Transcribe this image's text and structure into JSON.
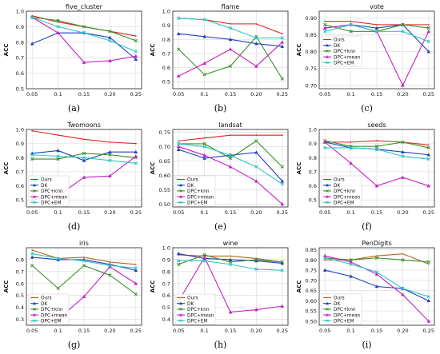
{
  "colors": {
    "Ours": "#b5651d",
    "DK": "#1f3fbf",
    "DPC+knn": "#3a8f2a",
    "DPC+mean": "#c41fc4",
    "DPC+EM": "#2ec4c4",
    "Ours_alt": "#e02020"
  },
  "chart_data": [
    {
      "type": "line",
      "title": "five_cluster",
      "ylabel": "ACC",
      "caption": "(a)",
      "x": [
        0.05,
        0.1,
        0.15,
        0.2,
        0.25
      ],
      "xticks": [
        "0.05",
        "0.1",
        "0.15",
        "0.20",
        "0.25"
      ],
      "ylim": [
        0.5,
        1.0
      ],
      "yticks": [
        "0.5",
        "0.6",
        "0.7",
        "0.8",
        "0.9",
        "1.0"
      ],
      "yticks_values": [
        0.5,
        0.6,
        0.7,
        0.8,
        0.9,
        1.0
      ],
      "legend_position": "none",
      "series": [
        {
          "name": "Ours",
          "color_key": "Ours_alt",
          "values": [
            0.97,
            0.93,
            0.9,
            0.87,
            0.84
          ]
        },
        {
          "name": "DK",
          "color_key": "DK",
          "values": [
            0.79,
            0.86,
            0.86,
            0.83,
            0.69
          ]
        },
        {
          "name": "DPC+knn",
          "color_key": "DPC+knn",
          "values": [
            0.96,
            0.94,
            0.9,
            0.87,
            0.81
          ]
        },
        {
          "name": "DPC+mean",
          "color_key": "DPC+mean",
          "values": [
            0.96,
            0.86,
            0.67,
            0.68,
            0.71
          ]
        },
        {
          "name": "DPC+EM",
          "color_key": "DPC+EM",
          "values": [
            0.96,
            0.9,
            0.86,
            0.81,
            0.74
          ]
        }
      ]
    },
    {
      "type": "line",
      "title": "flame",
      "ylabel": "ACC",
      "caption": "(b)",
      "x": [
        0.05,
        0.1,
        0.15,
        0.2,
        0.25
      ],
      "xticks": [
        "0.05",
        "0.1",
        "0.15",
        "0.20",
        "0.25"
      ],
      "ylim": [
        0.45,
        1.0
      ],
      "yticks": [
        "0.5",
        "0.6",
        "0.7",
        "0.8",
        "0.9",
        "1.0"
      ],
      "yticks_values": [
        0.5,
        0.6,
        0.7,
        0.8,
        0.9,
        1.0
      ],
      "legend_position": "none",
      "series": [
        {
          "name": "Ours",
          "color_key": "Ours_alt",
          "values": [
            0.95,
            0.94,
            0.91,
            0.91,
            0.84
          ]
        },
        {
          "name": "DK",
          "color_key": "DK",
          "values": [
            0.84,
            0.82,
            0.8,
            0.77,
            0.75
          ]
        },
        {
          "name": "DPC+knn",
          "color_key": "DPC+knn",
          "values": [
            0.73,
            0.55,
            0.61,
            0.82,
            0.52
          ]
        },
        {
          "name": "DPC+mean",
          "color_key": "DPC+mean",
          "values": [
            0.54,
            0.63,
            0.73,
            0.61,
            0.78
          ]
        },
        {
          "name": "DPC+EM",
          "color_key": "DPC+EM",
          "values": [
            0.95,
            0.94,
            0.88,
            0.81,
            0.81
          ]
        }
      ]
    },
    {
      "type": "line",
      "title": "vote",
      "ylabel": "ACC",
      "caption": "(c)",
      "x": [
        0.05,
        0.1,
        0.15,
        0.2,
        0.25
      ],
      "xticks": [
        "0.05",
        "0.1",
        "0.15",
        "0.20",
        "0.25"
      ],
      "ylim": [
        0.69,
        0.92
      ],
      "yticks": [
        "0.70",
        "0.75",
        "0.80",
        "0.85",
        "0.90"
      ],
      "yticks_values": [
        0.7,
        0.75,
        0.8,
        0.85,
        0.9
      ],
      "legend_position": "left",
      "series": [
        {
          "name": "Ours",
          "color_key": "Ours_alt",
          "values": [
            0.89,
            0.89,
            0.88,
            0.88,
            0.88
          ]
        },
        {
          "name": "DK",
          "color_key": "DK",
          "values": [
            0.87,
            0.88,
            0.87,
            0.88,
            0.8
          ]
        },
        {
          "name": "DPC+knn",
          "color_key": "DPC+knn",
          "values": [
            0.88,
            0.86,
            0.86,
            0.88,
            0.87
          ]
        },
        {
          "name": "DPC+mean",
          "color_key": "DPC+mean",
          "values": [
            0.87,
            0.88,
            0.86,
            0.7,
            0.86
          ]
        },
        {
          "name": "DPC+EM",
          "color_key": "DPC+EM",
          "values": [
            0.86,
            0.88,
            0.86,
            0.86,
            0.83
          ]
        }
      ]
    },
    {
      "type": "line",
      "title": "Twomoons",
      "ylabel": "ACC",
      "caption": "(d)",
      "x": [
        0.05,
        0.1,
        0.15,
        0.2,
        0.25
      ],
      "xticks": [
        "0.05",
        "0.1",
        "0.15",
        "0.20",
        "0.25"
      ],
      "ylim": [
        0.45,
        1.0
      ],
      "yticks": [
        "0.5",
        "0.6",
        "0.7",
        "0.8",
        "0.9",
        "1.0"
      ],
      "yticks_values": [
        0.5,
        0.6,
        0.7,
        0.8,
        0.9,
        1.0
      ],
      "legend_position": "bottom-left",
      "series": [
        {
          "name": "Ours",
          "color_key": "Ours_alt",
          "values": [
            0.99,
            0.96,
            0.93,
            0.91,
            0.9
          ]
        },
        {
          "name": "DK",
          "color_key": "DK",
          "values": [
            0.83,
            0.85,
            0.78,
            0.84,
            0.84
          ]
        },
        {
          "name": "DPC+knn",
          "color_key": "DPC+knn",
          "values": [
            0.79,
            0.79,
            0.83,
            0.82,
            0.8
          ]
        },
        {
          "name": "DPC+mean",
          "color_key": "DPC+mean",
          "values": [
            0.5,
            0.53,
            0.66,
            0.67,
            0.81
          ]
        },
        {
          "name": "DPC+EM",
          "color_key": "DPC+EM",
          "values": [
            0.82,
            0.81,
            0.8,
            0.78,
            0.76
          ]
        }
      ]
    },
    {
      "type": "line",
      "title": "landsat",
      "ylabel": "ACC",
      "caption": "(e)",
      "x": [
        0.05,
        0.1,
        0.15,
        0.2,
        0.25
      ],
      "xticks": [
        "0.05",
        "0.1",
        "0.15",
        "0.20",
        "0.25"
      ],
      "ylim": [
        0.49,
        0.76
      ],
      "yticks": [
        "0.50",
        "0.55",
        "0.60",
        "0.65",
        "0.70",
        "0.75"
      ],
      "yticks_values": [
        0.5,
        0.55,
        0.6,
        0.65,
        0.7,
        0.75
      ],
      "legend_position": "bottom-left",
      "series": [
        {
          "name": "Ours",
          "color_key": "Ours_alt",
          "values": [
            0.72,
            0.73,
            0.74,
            0.74,
            0.74
          ]
        },
        {
          "name": "DK",
          "color_key": "DK",
          "values": [
            0.69,
            0.66,
            0.67,
            0.68,
            0.58
          ]
        },
        {
          "name": "DPC+knn",
          "color_key": "DPC+knn",
          "values": [
            0.71,
            0.71,
            0.66,
            0.72,
            0.63
          ]
        },
        {
          "name": "DPC+mean",
          "color_key": "DPC+mean",
          "values": [
            0.7,
            0.67,
            0.63,
            0.58,
            0.5
          ]
        },
        {
          "name": "DPC+EM",
          "color_key": "DPC+EM",
          "values": [
            0.71,
            0.7,
            0.67,
            0.63,
            0.57
          ]
        }
      ]
    },
    {
      "type": "line",
      "title": "seeds",
      "ylabel": "ACC",
      "caption": "(f)",
      "x": [
        0.05,
        0.1,
        0.15,
        0.2,
        0.25
      ],
      "xticks": [
        "0.05",
        "0.1",
        "0.15",
        "0.20",
        "0.25"
      ],
      "ylim": [
        0.45,
        1.0
      ],
      "yticks": [
        "0.5",
        "0.6",
        "0.7",
        "0.8",
        "0.9",
        "1.0"
      ],
      "yticks_values": [
        0.5,
        0.6,
        0.7,
        0.8,
        0.9,
        1.0
      ],
      "legend_position": "bottom-left",
      "series": [
        {
          "name": "Ours",
          "color_key": "Ours_alt",
          "values": [
            0.91,
            0.91,
            0.92,
            0.91,
            0.89
          ]
        },
        {
          "name": "DK",
          "color_key": "DK",
          "values": [
            0.91,
            0.87,
            0.86,
            0.84,
            0.82
          ]
        },
        {
          "name": "DPC+knn",
          "color_key": "DPC+knn",
          "values": [
            0.92,
            0.88,
            0.88,
            0.91,
            0.87
          ]
        },
        {
          "name": "DPC+mean",
          "color_key": "DPC+mean",
          "values": [
            0.91,
            0.76,
            0.6,
            0.66,
            0.6
          ]
        },
        {
          "name": "DPC+EM",
          "color_key": "DPC+EM",
          "values": [
            0.87,
            0.87,
            0.86,
            0.81,
            0.79
          ]
        }
      ]
    },
    {
      "type": "line",
      "title": "iris",
      "ylabel": "ACC",
      "caption": "(g)",
      "x": [
        0.05,
        0.1,
        0.15,
        0.2,
        0.25
      ],
      "xticks": [
        "0.05",
        "0.1",
        "0.15",
        "0.20",
        "0.25"
      ],
      "ylim": [
        0.25,
        0.9
      ],
      "yticks": [
        "0.3",
        "0.4",
        "0.5",
        "0.6",
        "0.7",
        "0.8"
      ],
      "yticks_values": [
        0.3,
        0.4,
        0.5,
        0.6,
        0.7,
        0.8
      ],
      "legend_position": "bottom-left",
      "series": [
        {
          "name": "Ours",
          "color_key": "Ours",
          "values": [
            0.88,
            0.81,
            0.82,
            0.78,
            0.76
          ]
        },
        {
          "name": "DK",
          "color_key": "DK",
          "values": [
            0.82,
            0.8,
            0.8,
            0.76,
            0.71
          ]
        },
        {
          "name": "DPC+knn",
          "color_key": "DPC+knn",
          "values": [
            0.75,
            0.56,
            0.75,
            0.67,
            0.51
          ]
        },
        {
          "name": "DPC+mean",
          "color_key": "DPC+mean",
          "values": [
            0.28,
            0.3,
            0.49,
            0.74,
            0.6
          ]
        },
        {
          "name": "DPC+EM",
          "color_key": "DPC+EM",
          "values": [
            0.85,
            0.81,
            0.79,
            0.75,
            0.73
          ]
        }
      ]
    },
    {
      "type": "line",
      "title": "wine",
      "ylabel": "ACC",
      "caption": "(h)",
      "x": [
        0.05,
        0.1,
        0.15,
        0.2,
        0.25
      ],
      "xticks": [
        "0.05",
        "0.1",
        "0.15",
        "0.20",
        "0.25"
      ],
      "ylim": [
        0.35,
        1.0
      ],
      "yticks": [
        "0.4",
        "0.5",
        "0.6",
        "0.7",
        "0.8",
        "0.9",
        "1.0"
      ],
      "yticks_values": [
        0.4,
        0.5,
        0.6,
        0.7,
        0.8,
        0.9,
        1.0
      ],
      "legend_position": "bottom-left",
      "series": [
        {
          "name": "Ours",
          "color_key": "Ours",
          "values": [
            0.94,
            0.93,
            0.93,
            0.91,
            0.88
          ]
        },
        {
          "name": "DK",
          "color_key": "DK",
          "values": [
            0.95,
            0.91,
            0.9,
            0.89,
            0.87
          ]
        },
        {
          "name": "DPC+knn",
          "color_key": "DPC+knn",
          "values": [
            0.86,
            0.94,
            0.88,
            0.9,
            0.88
          ]
        },
        {
          "name": "DPC+mean",
          "color_key": "DPC+mean",
          "values": [
            0.55,
            0.92,
            0.46,
            0.48,
            0.51
          ]
        },
        {
          "name": "DPC+EM",
          "color_key": "DPC+EM",
          "values": [
            0.89,
            0.89,
            0.86,
            0.82,
            0.81
          ]
        }
      ]
    },
    {
      "type": "line",
      "title": "PenDigits",
      "ylabel": "ACC",
      "caption": "(i)",
      "x": [
        0.05,
        0.1,
        0.15,
        0.2,
        0.25
      ],
      "xticks": [
        "0.05",
        "0.1",
        "0.15",
        "0.20",
        "0.25"
      ],
      "ylim": [
        0.48,
        0.86
      ],
      "yticks": [
        "0.50",
        "0.55",
        "0.60",
        "0.65",
        "0.70",
        "0.75",
        "0.80",
        "0.85"
      ],
      "yticks_values": [
        0.5,
        0.55,
        0.6,
        0.65,
        0.7,
        0.75,
        0.8,
        0.85
      ],
      "legend_position": "bottom-left",
      "series": [
        {
          "name": "Ours",
          "color_key": "Ours",
          "values": [
            0.8,
            0.8,
            0.82,
            0.83,
            0.78
          ]
        },
        {
          "name": "DK",
          "color_key": "DK",
          "values": [
            0.75,
            0.72,
            0.67,
            0.66,
            0.6
          ]
        },
        {
          "name": "DPC+knn",
          "color_key": "DPC+knn",
          "values": [
            0.81,
            0.8,
            0.81,
            0.8,
            0.79
          ]
        },
        {
          "name": "DPC+mean",
          "color_key": "DPC+mean",
          "values": [
            0.82,
            0.79,
            0.73,
            0.63,
            0.5
          ]
        },
        {
          "name": "DPC+EM",
          "color_key": "DPC+EM",
          "values": [
            0.81,
            0.78,
            0.74,
            0.66,
            0.62
          ]
        }
      ]
    }
  ]
}
